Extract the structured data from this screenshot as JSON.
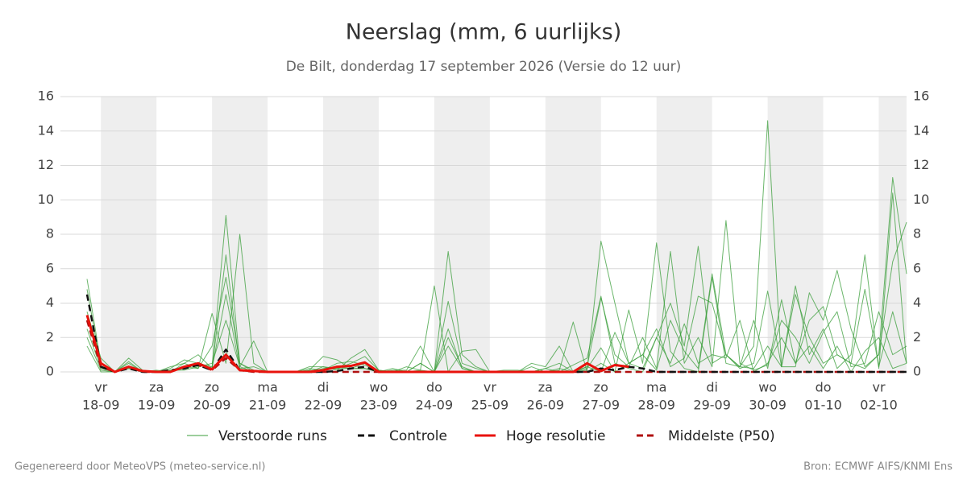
{
  "chart_data": {
    "type": "line",
    "title": "Neerslag (mm, 6 uurlijks)",
    "subtitle": "De Bilt, donderdag 17 september 2026 (Versie do 12 uur)",
    "footer_left": "Gegenereerd door MeteoVPS (meteo-service.nl)",
    "footer_right": "Bron: ECMWF AIFS/KNMI Ens",
    "categories": [
      null,
      {
        "day": "vr",
        "date": "18-09"
      },
      null,
      null,
      null,
      {
        "day": "za",
        "date": "19-09"
      },
      null,
      null,
      null,
      {
        "day": "zo",
        "date": "20-09"
      },
      null,
      null,
      null,
      {
        "day": "ma",
        "date": "21-09"
      },
      null,
      null,
      null,
      {
        "day": "di",
        "date": "22-09"
      },
      null,
      null,
      null,
      {
        "day": "wo",
        "date": "23-09"
      },
      null,
      null,
      null,
      {
        "day": "do",
        "date": "24-09"
      },
      null,
      null,
      null,
      {
        "day": "vr",
        "date": "25-09"
      },
      null,
      null,
      null,
      {
        "day": "za",
        "date": "26-09"
      },
      null,
      null,
      null,
      {
        "day": "zo",
        "date": "27-09"
      },
      null,
      null,
      null,
      {
        "day": "ma",
        "date": "28-09"
      },
      null,
      null,
      null,
      {
        "day": "di",
        "date": "29-09"
      },
      null,
      null,
      null,
      {
        "day": "wo",
        "date": "30-09"
      },
      null,
      null,
      null,
      {
        "day": "do",
        "date": "01-10"
      },
      null,
      null,
      null,
      {
        "day": "vr",
        "date": "02-10"
      },
      null,
      null
    ],
    "ylim": [
      0,
      16
    ],
    "yticks": [
      0,
      2,
      4,
      6,
      8,
      10,
      12,
      14,
      16
    ],
    "grid": true,
    "ensemble": {
      "name": "Verstoorde runs",
      "color": "#3a9e3a",
      "members": [
        [
          5.4,
          0.5,
          0,
          0.8,
          0.1,
          0,
          0.2,
          0.7,
          0.5,
          0.3,
          9.1,
          0.5,
          0.1,
          0,
          0,
          0,
          0,
          0.3,
          0.2,
          0.5,
          0.9,
          0.1,
          0,
          0,
          0.5,
          0,
          2.0,
          0.3,
          0,
          0,
          0,
          0,
          0,
          0,
          0.2,
          0,
          0.1,
          7.6,
          4.0,
          0.5,
          1.0,
          2.5,
          0.3,
          0.8,
          4.4,
          4.0,
          1.0,
          0.3,
          0.2,
          1.5,
          0.3,
          4.5,
          2.0,
          0.5,
          1.0,
          0.5,
          0.2,
          1.0,
          11.3,
          5.7
        ],
        [
          4.8,
          0.3,
          0,
          0.5,
          0,
          0,
          0.1,
          0.3,
          0.2,
          3.4,
          0.5,
          8.0,
          0.5,
          0,
          0,
          0,
          0.1,
          0.9,
          0.7,
          0.2,
          0.2,
          0,
          0.2,
          0,
          0.1,
          5.0,
          0,
          1.2,
          1.3,
          0,
          0,
          0,
          0.3,
          0,
          0.1,
          2.9,
          0,
          0.5,
          0,
          3.6,
          0.5,
          7.5,
          1.2,
          0.2,
          0,
          5.5,
          0.5,
          0.3,
          1.5,
          14.6,
          0.3,
          5.0,
          1.0,
          2.5,
          0.2,
          1.0,
          6.8,
          0.2,
          10.4,
          0.5
        ],
        [
          3.5,
          0.8,
          0,
          0.3,
          0,
          0,
          0,
          0.5,
          1.0,
          0.2,
          6.8,
          0.3,
          1.8,
          0,
          0,
          0,
          0.3,
          0.3,
          0.1,
          0.8,
          1.3,
          0.1,
          0,
          0,
          0.5,
          0,
          7.0,
          1.0,
          0.3,
          0,
          0,
          0,
          0.5,
          0.3,
          1.5,
          0,
          0.3,
          4.3,
          1.0,
          0.3,
          2.0,
          0.2,
          7.0,
          0.5,
          2.0,
          0.3,
          8.8,
          0.5,
          0.1,
          0.4,
          3.0,
          2.0,
          0.5,
          2.3,
          3.5,
          0.3,
          0.5,
          3.5,
          1.0,
          1.5
        ],
        [
          2.5,
          0.2,
          0,
          0.6,
          0,
          0,
          0.3,
          0.5,
          0.2,
          1.5,
          5.5,
          0.5,
          0,
          0,
          0,
          0,
          0.2,
          0.1,
          0.5,
          0.6,
          0.4,
          0,
          0.1,
          0.1,
          1.5,
          0,
          2.5,
          0.2,
          0,
          0,
          0.1,
          0.1,
          0,
          0.2,
          0,
          0.4,
          0.8,
          4.4,
          0.5,
          0.2,
          0,
          2.0,
          4.0,
          1.5,
          7.3,
          0.5,
          1.0,
          0.2,
          0.5,
          4.7,
          0.3,
          0.3,
          4.6,
          3.0,
          5.9,
          2.5,
          0.3,
          1.0,
          6.4,
          8.7
        ],
        [
          2.0,
          0.1,
          0,
          0.2,
          0,
          0.1,
          0,
          0.2,
          0.5,
          0.2,
          4.5,
          0.2,
          0.3,
          0,
          0,
          0,
          0,
          0.2,
          0.3,
          0.2,
          0.5,
          0,
          0,
          0.3,
          0.1,
          0,
          4.1,
          0.5,
          0.2,
          0,
          0,
          0,
          0,
          0.2,
          0.5,
          0,
          0.3,
          0,
          2.3,
          0.5,
          1.0,
          0.1,
          3.0,
          1.2,
          0.2,
          5.7,
          1.0,
          0.3,
          3.0,
          0.2,
          4.2,
          0.5,
          3.0,
          3.8,
          1.0,
          0.5,
          4.8,
          0.3,
          3.5,
          0.5
        ],
        [
          1.5,
          0,
          0,
          0.2,
          0,
          0,
          0.1,
          0.1,
          0.3,
          0.5,
          3.0,
          0.3,
          0,
          0,
          0,
          0,
          0.1,
          0.1,
          0.2,
          0.2,
          0.2,
          0,
          0,
          0,
          0,
          0,
          1.5,
          0.2,
          0,
          0,
          0,
          0,
          0,
          0,
          0,
          0,
          0.2,
          1.4,
          0,
          0.5,
          0.2,
          2.0,
          0.5,
          2.8,
          0.5,
          1.0,
          0.8,
          3.0,
          0,
          0.5,
          2.0,
          0.5,
          1.5,
          0.2,
          1.5,
          0,
          1.2,
          2.0,
          0.2,
          0.5
        ]
      ]
    },
    "series": [
      {
        "name": "Controle",
        "color": "#111111",
        "dash": "dashed",
        "values": [
          4.5,
          0.3,
          0,
          0.2,
          0,
          0,
          0.1,
          0.2,
          0.4,
          0.1,
          1.3,
          0.1,
          0.05,
          0,
          0,
          0,
          0,
          0,
          0.05,
          0.2,
          0.3,
          0,
          0,
          0,
          0,
          0,
          0,
          0,
          0,
          0,
          0,
          0,
          0,
          0,
          0,
          0,
          0,
          0.2,
          0.1,
          0.3,
          0.2,
          0,
          0,
          0,
          0,
          0,
          0,
          0,
          0,
          0,
          0,
          0,
          0,
          0,
          0,
          0,
          0,
          0,
          0,
          0
        ]
      },
      {
        "name": "Hoge resolutie",
        "color": "#e8120c",
        "dash": "solid",
        "values": [
          3.3,
          0.5,
          0,
          0.3,
          0.05,
          0,
          0,
          0.3,
          0.5,
          0.15,
          1.0,
          0.1,
          0.05,
          0,
          0,
          0,
          0,
          0.1,
          0.3,
          0.35,
          0.55,
          0,
          0,
          0,
          0,
          0,
          0,
          0,
          0,
          0,
          0,
          0,
          0,
          0,
          0,
          0,
          0.5,
          0.05,
          0.4,
          0.3,
          null,
          null,
          null,
          null,
          null,
          null,
          null,
          null,
          null,
          null,
          null,
          null,
          null,
          null,
          null,
          null,
          null,
          null,
          null,
          null
        ]
      },
      {
        "name": "Middelste (P50)",
        "color": "#b01010",
        "dash": "dashed",
        "values": [
          3.0,
          0.3,
          0,
          0.3,
          0,
          0,
          0,
          0.3,
          0.4,
          0.1,
          0.8,
          0.1,
          0,
          0,
          0,
          0,
          0,
          0,
          0,
          0,
          0,
          0,
          0,
          0,
          0,
          0,
          0,
          0,
          0,
          0,
          0,
          0,
          0,
          0,
          0,
          0,
          0,
          0,
          0,
          0,
          0,
          0,
          0,
          0,
          0,
          0,
          0,
          0,
          0,
          0,
          0,
          0,
          0,
          0,
          0,
          0,
          0,
          0,
          0,
          0
        ]
      }
    ]
  }
}
